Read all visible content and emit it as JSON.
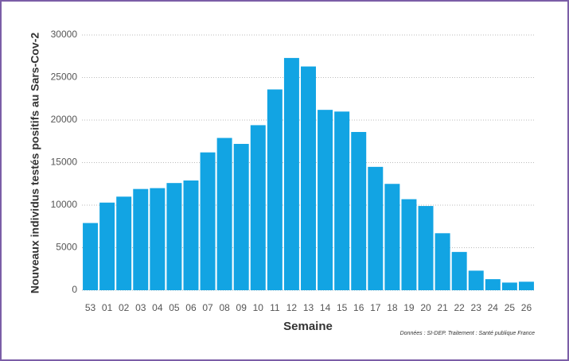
{
  "chart_data": {
    "type": "bar",
    "ylabel": "Nouveaux individus testés positifs au Sars-Cov-2",
    "xlabel": "Semaine",
    "caption": "Données : SI-DEP. Traitement : Santé publique France",
    "categories": [
      "53",
      "01",
      "02",
      "03",
      "04",
      "05",
      "06",
      "07",
      "08",
      "09",
      "10",
      "11",
      "12",
      "13",
      "14",
      "15",
      "16",
      "17",
      "18",
      "19",
      "20",
      "21",
      "22",
      "23",
      "24",
      "25",
      "26"
    ],
    "values": [
      7900,
      10300,
      11000,
      11900,
      12000,
      12600,
      12900,
      16200,
      17900,
      17200,
      19400,
      23600,
      27300,
      26300,
      21200,
      21000,
      18600,
      14500,
      12500,
      10700,
      9900,
      6700,
      4500,
      2300,
      1300,
      900,
      1000
    ],
    "color": "#12a4e3",
    "ylim": [
      0,
      30000
    ],
    "yticks": [
      0,
      5000,
      10000,
      15000,
      20000,
      25000,
      30000
    ],
    "grid": true
  }
}
